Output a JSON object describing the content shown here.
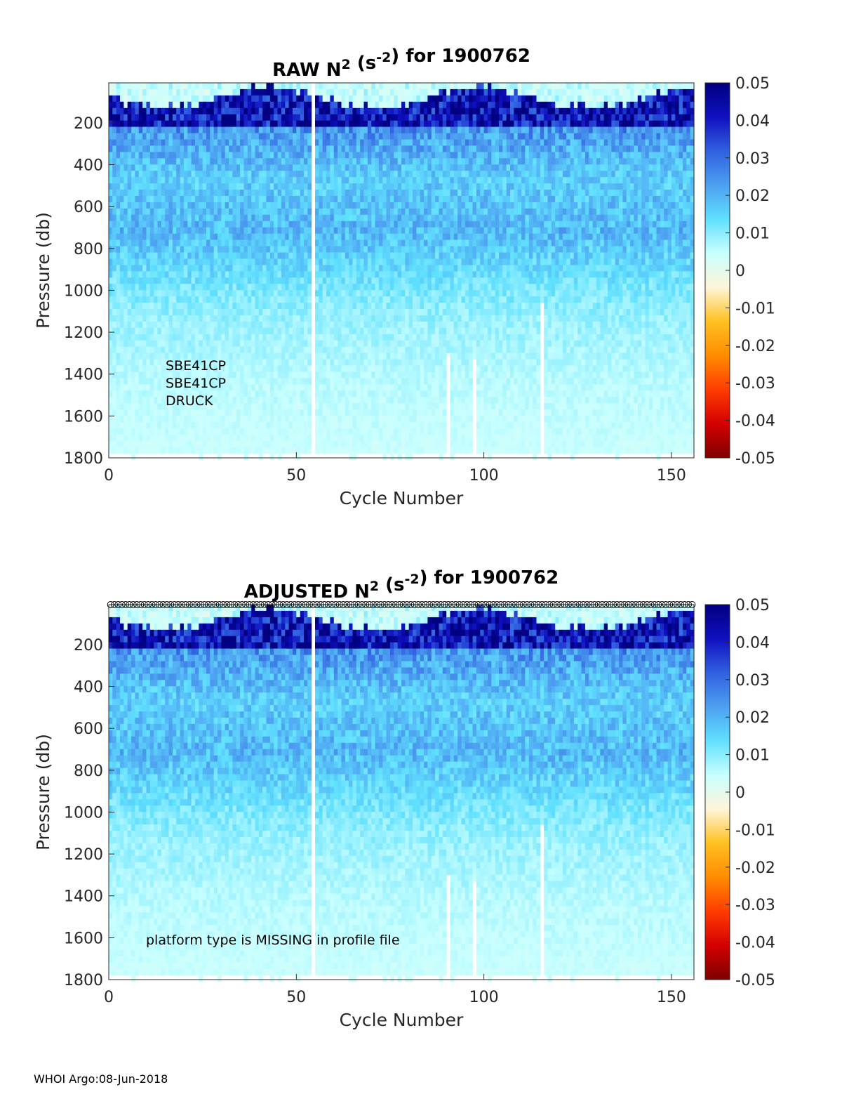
{
  "chart_data": [
    {
      "type": "heatmap",
      "title_main": "RAW N",
      "title_sup": "2",
      "title_unit_pre": " (s",
      "title_unit_sup": "-2",
      "title_post": ") for 1900762",
      "xlabel": "Cycle Number",
      "ylabel": "Pressure (db)",
      "xlim": [
        0,
        156
      ],
      "ylim": [
        1800,
        9
      ],
      "xticks": [
        "0",
        "50",
        "100",
        "150"
      ],
      "xtick_values": [
        0,
        50,
        100,
        150
      ],
      "yticks": [
        "200",
        "400",
        "600",
        "800",
        "1000",
        "1200",
        "1400",
        "1600",
        "1800"
      ],
      "ytick_values": [
        200,
        400,
        600,
        800,
        1000,
        1200,
        1400,
        1600,
        1800
      ],
      "annotations": [
        "SBE41CP",
        "SBE41CP",
        "DRUCK"
      ],
      "qc_markers": false
    },
    {
      "type": "heatmap",
      "title_main": "ADJUSTED N",
      "title_sup": "2",
      "title_unit_pre": " (s",
      "title_unit_sup": "-2",
      "title_post": ") for 1900762",
      "xlabel": "Cycle Number",
      "ylabel": "Pressure (db)",
      "xlim": [
        0,
        156
      ],
      "ylim": [
        1800,
        9
      ],
      "xticks": [
        "0",
        "50",
        "100",
        "150"
      ],
      "xtick_values": [
        0,
        50,
        100,
        150
      ],
      "yticks": [
        "200",
        "400",
        "600",
        "800",
        "1000",
        "1200",
        "1400",
        "1600",
        "1800"
      ],
      "ytick_values": [
        200,
        400,
        600,
        800,
        1000,
        1200,
        1400,
        1600,
        1800
      ],
      "annotations": [
        "platform type is MISSING in profile file"
      ],
      "qc_markers": true
    }
  ],
  "field": {
    "cycles": 156,
    "depth_profile": {
      "pressure": [
        0,
        150,
        200,
        300,
        450,
        700,
        950,
        1100,
        1400,
        1800
      ],
      "mean_n2": [
        0.035,
        0.045,
        0.025,
        0.021,
        0.016,
        0.019,
        0.012,
        0.009,
        0.006,
        0.004
      ]
    },
    "missing_cycles": [
      54
    ],
    "partial_gaps": [
      {
        "cycle": 90,
        "from": 1270
      },
      {
        "cycle": 97,
        "from": 1300
      },
      {
        "cycle": 115,
        "from": 1050
      }
    ],
    "max_pressure_typical": 1750
  },
  "colorbar": {
    "ticks": [
      "0.05",
      "0.04",
      "0.03",
      "0.02",
      "0.01",
      "0",
      "-0.01",
      "-0.02",
      "-0.03",
      "-0.04",
      "-0.05"
    ],
    "tick_values": [
      0.05,
      0.04,
      0.03,
      0.02,
      0.01,
      0,
      -0.01,
      -0.02,
      -0.03,
      -0.04,
      -0.05
    ],
    "colors": [
      "#7f0000",
      "#d40000",
      "#ff3c00",
      "#ff8c00",
      "#ffc020",
      "#fff5d8",
      "#c8ffff",
      "#60e0ff",
      "#4da0f0",
      "#3060e0",
      "#1010c0",
      "#000080"
    ]
  },
  "footer": "WHOI Argo:08-Jun-2018"
}
